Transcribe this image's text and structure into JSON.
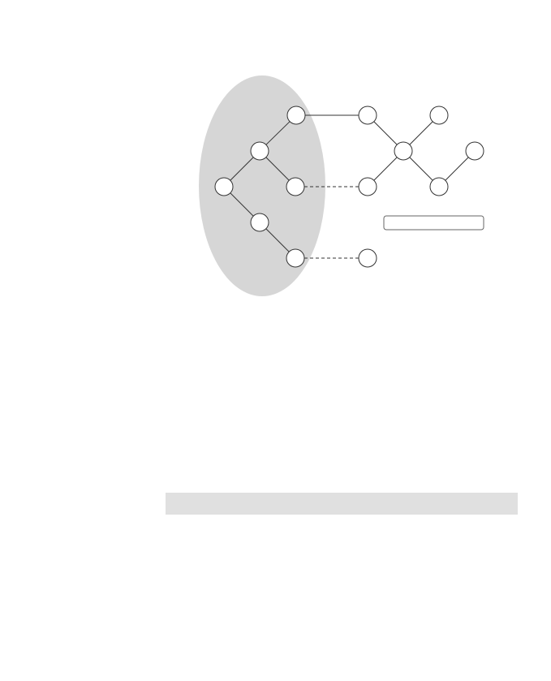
{
  "diagram": {
    "cluster_color": "#d6d6d6",
    "node_fill": "#ffffff",
    "node_stroke": "#333333",
    "cluster_nodes": [
      "n1",
      "n2",
      "n3",
      "n4",
      "n5",
      "n6"
    ],
    "outer_nodes": [
      "o1",
      "o2",
      "o3",
      "o4",
      "o5",
      "o6",
      "o7"
    ],
    "edges": [
      {
        "from": "n1",
        "to": "n2",
        "style": "solid"
      },
      {
        "from": "n2",
        "to": "n3",
        "style": "solid"
      },
      {
        "from": "n2",
        "to": "n4",
        "style": "solid"
      },
      {
        "from": "n3",
        "to": "n5",
        "style": "solid"
      },
      {
        "from": "n5",
        "to": "n6",
        "style": "solid"
      },
      {
        "from": "n1",
        "to": "o1",
        "style": "solid"
      },
      {
        "from": "o1",
        "to": "o3",
        "style": "solid"
      },
      {
        "from": "o2",
        "to": "o3",
        "style": "solid"
      },
      {
        "from": "o3",
        "to": "o4",
        "style": "solid"
      },
      {
        "from": "o3",
        "to": "o5",
        "style": "solid"
      },
      {
        "from": "o5",
        "to": "o6",
        "style": "solid"
      },
      {
        "from": "n4",
        "to": "o4",
        "style": "dashed"
      },
      {
        "from": "n6",
        "to": "o7",
        "style": "dashed"
      }
    ],
    "label_box_text": ""
  },
  "bottom_bar": {
    "color": "#e0e0e0",
    "text": ""
  }
}
